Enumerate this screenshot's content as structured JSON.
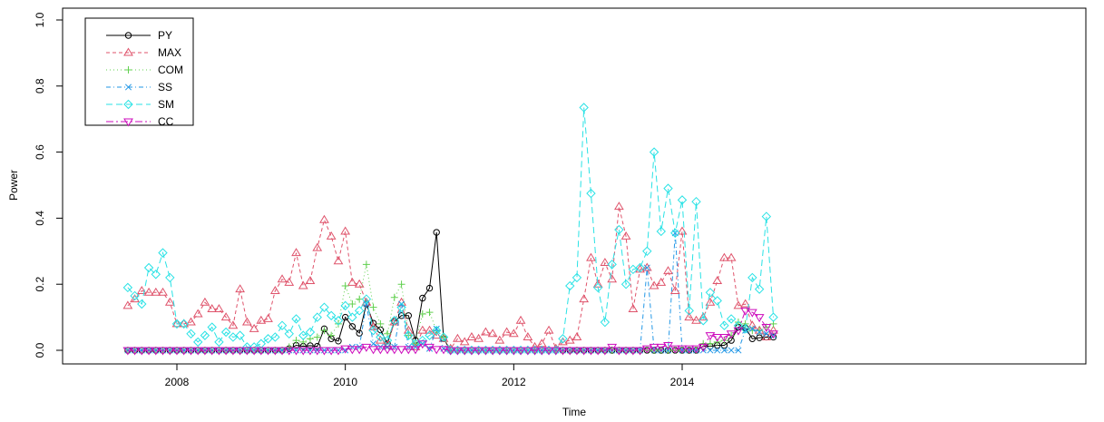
{
  "chart_data": {
    "type": "line",
    "xlabel": "Time",
    "ylabel": "Power",
    "xlim": [
      2007.3,
      2015.3
    ],
    "ylim": [
      0,
      1
    ],
    "xticks": [
      2008,
      2010,
      2012,
      2014
    ],
    "xtick_labels": [
      "2008",
      "2010",
      "2012",
      "2014"
    ],
    "yticks": [
      0,
      0.2,
      0.4,
      0.6,
      0.8,
      1.0
    ],
    "ytick_labels": [
      "0.0",
      "0.2",
      "0.4",
      "0.6",
      "0.8",
      "1.0"
    ],
    "grid": false,
    "legend_position": "top-left",
    "x": [
      2007.417,
      2007.5,
      2007.583,
      2007.667,
      2007.75,
      2007.833,
      2007.917,
      2008.0,
      2008.083,
      2008.167,
      2008.25,
      2008.333,
      2008.417,
      2008.5,
      2008.583,
      2008.667,
      2008.75,
      2008.833,
      2008.917,
      2009.0,
      2009.083,
      2009.167,
      2009.25,
      2009.333,
      2009.417,
      2009.5,
      2009.583,
      2009.667,
      2009.75,
      2009.833,
      2009.917,
      2010.0,
      2010.083,
      2010.167,
      2010.25,
      2010.333,
      2010.417,
      2010.5,
      2010.583,
      2010.667,
      2010.75,
      2010.833,
      2010.917,
      2011.0,
      2011.083,
      2011.167,
      2011.25,
      2011.333,
      2011.417,
      2011.5,
      2011.583,
      2011.667,
      2011.75,
      2011.833,
      2011.917,
      2012.0,
      2012.083,
      2012.167,
      2012.25,
      2012.333,
      2012.417,
      2012.5,
      2012.583,
      2012.667,
      2012.75,
      2012.833,
      2012.917,
      2013.0,
      2013.083,
      2013.167,
      2013.25,
      2013.333,
      2013.417,
      2013.5,
      2013.583,
      2013.667,
      2013.75,
      2013.833,
      2013.917,
      2014.0,
      2014.083,
      2014.167,
      2014.25,
      2014.333,
      2014.417,
      2014.5,
      2014.583,
      2014.667,
      2014.75,
      2014.833,
      2014.917,
      2015.0,
      2015.083
    ],
    "series": [
      {
        "name": "PY",
        "color": "#000000",
        "dash": "",
        "marker": "circle",
        "values": [
          0,
          0,
          0,
          0,
          0,
          0,
          0,
          0,
          0,
          0,
          0,
          0,
          0,
          0,
          0,
          0,
          0,
          0,
          0,
          0,
          0,
          0,
          0,
          0.005,
          0.015,
          0.012,
          0.014,
          0.012,
          0.065,
          0.035,
          0.028,
          0.1,
          0.072,
          0.052,
          0.14,
          0.082,
          0.062,
          0.02,
          0.088,
          0.105,
          0.105,
          0.03,
          0.158,
          0.188,
          0.357,
          0.035,
          0,
          0,
          0,
          0,
          0,
          0,
          0,
          0,
          0,
          0,
          0,
          0,
          0,
          0,
          0,
          0,
          0,
          0,
          0,
          0,
          0,
          0,
          0,
          0,
          0,
          0,
          0,
          0,
          0,
          0,
          0,
          0,
          0,
          0,
          0,
          0,
          0.012,
          0.012,
          0.015,
          0.015,
          0.03,
          0.07,
          0.068,
          0.035,
          0.038,
          0.04,
          0.04
        ]
      },
      {
        "name": "MAX",
        "color": "#df536b",
        "dash": "4,3",
        "marker": "triangle-up",
        "values": [
          0.135,
          0.155,
          0.18,
          0.175,
          0.175,
          0.175,
          0.145,
          0.08,
          0.08,
          0.085,
          0.11,
          0.145,
          0.125,
          0.125,
          0.1,
          0.075,
          0.185,
          0.085,
          0.065,
          0.09,
          0.095,
          0.18,
          0.215,
          0.205,
          0.295,
          0.195,
          0.21,
          0.31,
          0.395,
          0.345,
          0.27,
          0.36,
          0.205,
          0.2,
          0.145,
          0.07,
          0.03,
          0.015,
          0.085,
          0.145,
          0.06,
          0.01,
          0.06,
          0.06,
          0.045,
          0.035,
          0.005,
          0.035,
          0.025,
          0.04,
          0.035,
          0.055,
          0.05,
          0.03,
          0.055,
          0.05,
          0.09,
          0.04,
          0.01,
          0.02,
          0.06,
          0.005,
          0.025,
          0.03,
          0.04,
          0.155,
          0.28,
          0.2,
          0.265,
          0.215,
          0.435,
          0.345,
          0.125,
          0.245,
          0.25,
          0.195,
          0.205,
          0.24,
          0.18,
          0.36,
          0.1,
          0.09,
          0.1,
          0.145,
          0.21,
          0.28,
          0.28,
          0.135,
          0.14,
          0.075,
          0.06,
          0.04,
          0.06
        ]
      },
      {
        "name": "COM",
        "color": "#61d04f",
        "dash": "1,3",
        "marker": "plus",
        "values": [
          0,
          0,
          0,
          0,
          0,
          0,
          0,
          0,
          0,
          0,
          0,
          0,
          0,
          0,
          0,
          0,
          0,
          0,
          0,
          0,
          0,
          0,
          0,
          0.01,
          0.03,
          0.025,
          0.035,
          0.04,
          0.06,
          0.045,
          0.08,
          0.195,
          0.14,
          0.155,
          0.26,
          0.13,
          0.08,
          0.05,
          0.16,
          0.2,
          0.045,
          0.02,
          0.11,
          0.115,
          0.06,
          0.04,
          0,
          0,
          0,
          0,
          0,
          0,
          0,
          0,
          0,
          0,
          0,
          0,
          0,
          0,
          0,
          0,
          0,
          0,
          0,
          0,
          0,
          0,
          0,
          0,
          0,
          0,
          0,
          0,
          0,
          0,
          0,
          0,
          0,
          0,
          0,
          0,
          0.02,
          0.02,
          0.025,
          0.03,
          0.045,
          0.085,
          0.08,
          0.06,
          0.06,
          0.07,
          0.08
        ]
      },
      {
        "name": "SS",
        "color": "#2297e6",
        "dash": "5,3,1,3",
        "marker": "cross",
        "values": [
          0,
          0,
          0,
          0,
          0,
          0,
          0,
          0,
          0,
          0,
          0,
          0,
          0,
          0,
          0,
          0,
          0,
          0,
          0,
          0,
          0,
          0,
          0,
          0,
          0,
          0,
          0,
          0,
          0,
          0,
          0,
          0,
          0.01,
          0.01,
          0.14,
          0.02,
          0.01,
          0.01,
          0.01,
          0.14,
          0.01,
          0.01,
          0.02,
          0.005,
          0.065,
          0.005,
          0,
          0,
          0,
          0,
          0,
          0,
          0,
          0,
          0,
          0,
          0,
          0,
          0,
          0,
          0,
          0,
          0,
          0,
          0,
          0,
          0,
          0,
          0,
          0,
          0,
          0,
          0,
          0,
          0.25,
          0,
          0,
          0,
          0.355,
          0,
          0,
          0,
          0,
          0,
          0,
          0,
          0,
          0,
          0.06,
          0.065,
          0.055,
          0.05,
          0.045
        ]
      },
      {
        "name": "SM",
        "color": "#28e2e5",
        "dash": "7,4",
        "marker": "diamond",
        "values": [
          0.19,
          0.165,
          0.14,
          0.25,
          0.23,
          0.295,
          0.22,
          0.08,
          0.08,
          0.05,
          0.025,
          0.045,
          0.07,
          0.025,
          0.055,
          0.04,
          0.045,
          0.01,
          0.01,
          0.02,
          0.035,
          0.04,
          0.075,
          0.05,
          0.095,
          0.045,
          0.055,
          0.1,
          0.13,
          0.105,
          0.09,
          0.135,
          0.1,
          0.12,
          0.155,
          0.06,
          0.04,
          0.03,
          0.09,
          0.13,
          0.045,
          0.02,
          0.03,
          0.045,
          0.06,
          0.04,
          0,
          0,
          0,
          0,
          0,
          0,
          0,
          0,
          0,
          0,
          0,
          0,
          0,
          0,
          0,
          0,
          0.035,
          0.195,
          0.22,
          0.735,
          0.475,
          0.19,
          0.085,
          0.26,
          0.365,
          0.2,
          0.245,
          0.25,
          0.3,
          0.6,
          0.36,
          0.49,
          0.355,
          0.455,
          0.12,
          0.45,
          0.09,
          0.175,
          0.15,
          0.075,
          0.095,
          0.075,
          0.065,
          0.22,
          0.185,
          0.405,
          0.1
        ]
      },
      {
        "name": "CC",
        "color": "#cd0bbc",
        "dash": "8,3,2,3",
        "marker": "triangle-down",
        "values": [
          0,
          0,
          0,
          0,
          0,
          0,
          0,
          0,
          0,
          0,
          0,
          0,
          0,
          0,
          0,
          0,
          0,
          0,
          0,
          0,
          0,
          0,
          0,
          0,
          0,
          0,
          0,
          0,
          0,
          0,
          0,
          0.005,
          0.003,
          0.003,
          0.01,
          0.003,
          0.003,
          0.003,
          0.003,
          0.003,
          0.003,
          0.003,
          0.02,
          0.01,
          0.003,
          0.003,
          0,
          0,
          0,
          0,
          0,
          0,
          0,
          0,
          0,
          0,
          0,
          0,
          0,
          0,
          0,
          0,
          0,
          0,
          0,
          0,
          0,
          0,
          0,
          0.01,
          0,
          0,
          0,
          0,
          0.005,
          0.01,
          0.01,
          0.015,
          0.005,
          0.005,
          0.005,
          0.005,
          0.01,
          0.045,
          0.04,
          0.04,
          0.05,
          0.06,
          0.12,
          0.115,
          0.1,
          0.07,
          0.05
        ]
      }
    ]
  }
}
